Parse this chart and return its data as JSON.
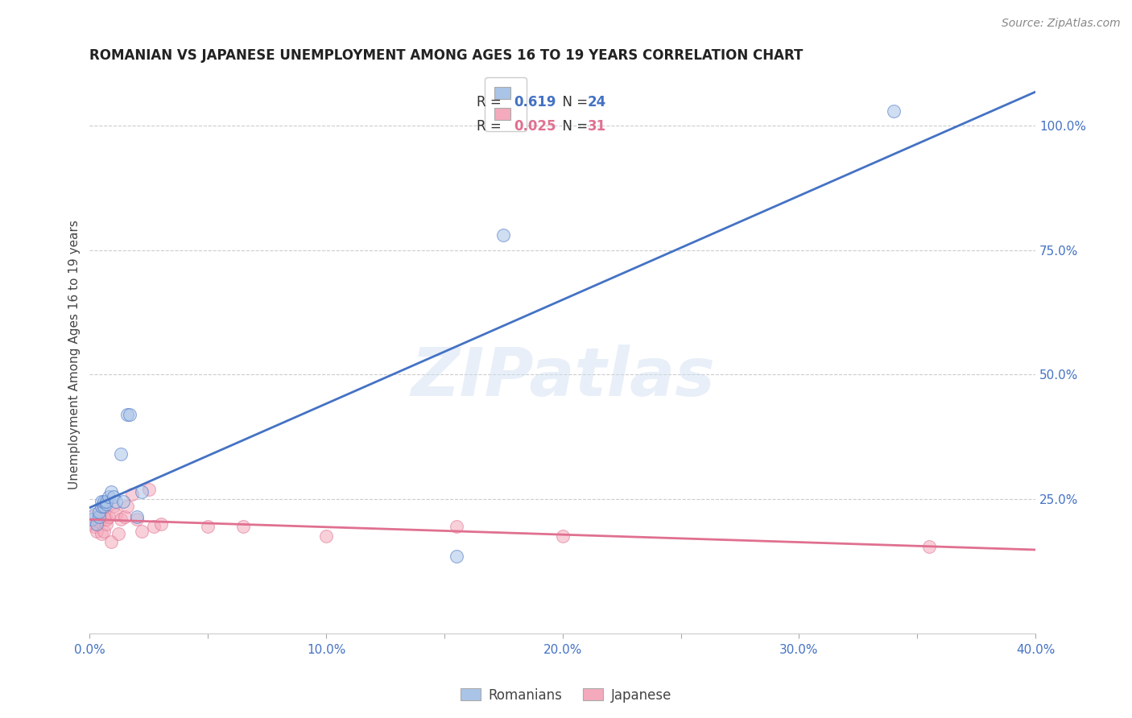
{
  "title": "ROMANIAN VS JAPANESE UNEMPLOYMENT AMONG AGES 16 TO 19 YEARS CORRELATION CHART",
  "source": "Source: ZipAtlas.com",
  "ylabel": "Unemployment Among Ages 16 to 19 years",
  "xlim": [
    0.0,
    0.4
  ],
  "ylim": [
    -0.02,
    1.1
  ],
  "xtick_labels": [
    "0.0%",
    "",
    "10.0%",
    "",
    "20.0%",
    "",
    "30.0%",
    "",
    "40.0%"
  ],
  "xtick_vals": [
    0.0,
    0.05,
    0.1,
    0.15,
    0.2,
    0.25,
    0.3,
    0.35,
    0.4
  ],
  "ytick_right_labels": [
    "25.0%",
    "50.0%",
    "75.0%",
    "100.0%"
  ],
  "ytick_right_vals": [
    0.25,
    0.5,
    0.75,
    1.0
  ],
  "grid_color": "#cccccc",
  "background_color": "#ffffff",
  "watermark": "ZIPatlas",
  "romanians_color": "#aac4e8",
  "japanese_color": "#f4aabc",
  "blue_line_color": "#4472c4",
  "pink_line_color": "#e07090",
  "romanian_R": "0.619",
  "romanian_N": "24",
  "japanese_R": "0.025",
  "japanese_N": "31",
  "romanians_x": [
    0.001,
    0.002,
    0.003,
    0.004,
    0.004,
    0.005,
    0.005,
    0.006,
    0.006,
    0.007,
    0.007,
    0.008,
    0.009,
    0.01,
    0.011,
    0.013,
    0.014,
    0.016,
    0.017,
    0.02,
    0.022,
    0.155,
    0.175,
    0.34
  ],
  "romanians_y": [
    0.21,
    0.22,
    0.2,
    0.215,
    0.225,
    0.235,
    0.245,
    0.235,
    0.245,
    0.24,
    0.245,
    0.255,
    0.265,
    0.255,
    0.245,
    0.34,
    0.245,
    0.42,
    0.42,
    0.215,
    0.265,
    0.135,
    0.78,
    1.03
  ],
  "japanese_x": [
    0.001,
    0.002,
    0.002,
    0.003,
    0.004,
    0.005,
    0.005,
    0.006,
    0.006,
    0.007,
    0.007,
    0.008,
    0.009,
    0.01,
    0.011,
    0.012,
    0.013,
    0.015,
    0.016,
    0.018,
    0.02,
    0.022,
    0.025,
    0.027,
    0.03,
    0.05,
    0.065,
    0.1,
    0.155,
    0.2,
    0.355
  ],
  "japanese_y": [
    0.215,
    0.2,
    0.195,
    0.185,
    0.205,
    0.225,
    0.18,
    0.185,
    0.215,
    0.2,
    0.21,
    0.215,
    0.165,
    0.235,
    0.22,
    0.18,
    0.21,
    0.215,
    0.235,
    0.26,
    0.21,
    0.185,
    0.27,
    0.195,
    0.2,
    0.195,
    0.195,
    0.175,
    0.195,
    0.175,
    0.155
  ],
  "title_fontsize": 12,
  "source_fontsize": 10,
  "marker_size": 130,
  "marker_alpha": 0.55,
  "line_width": 2.0
}
